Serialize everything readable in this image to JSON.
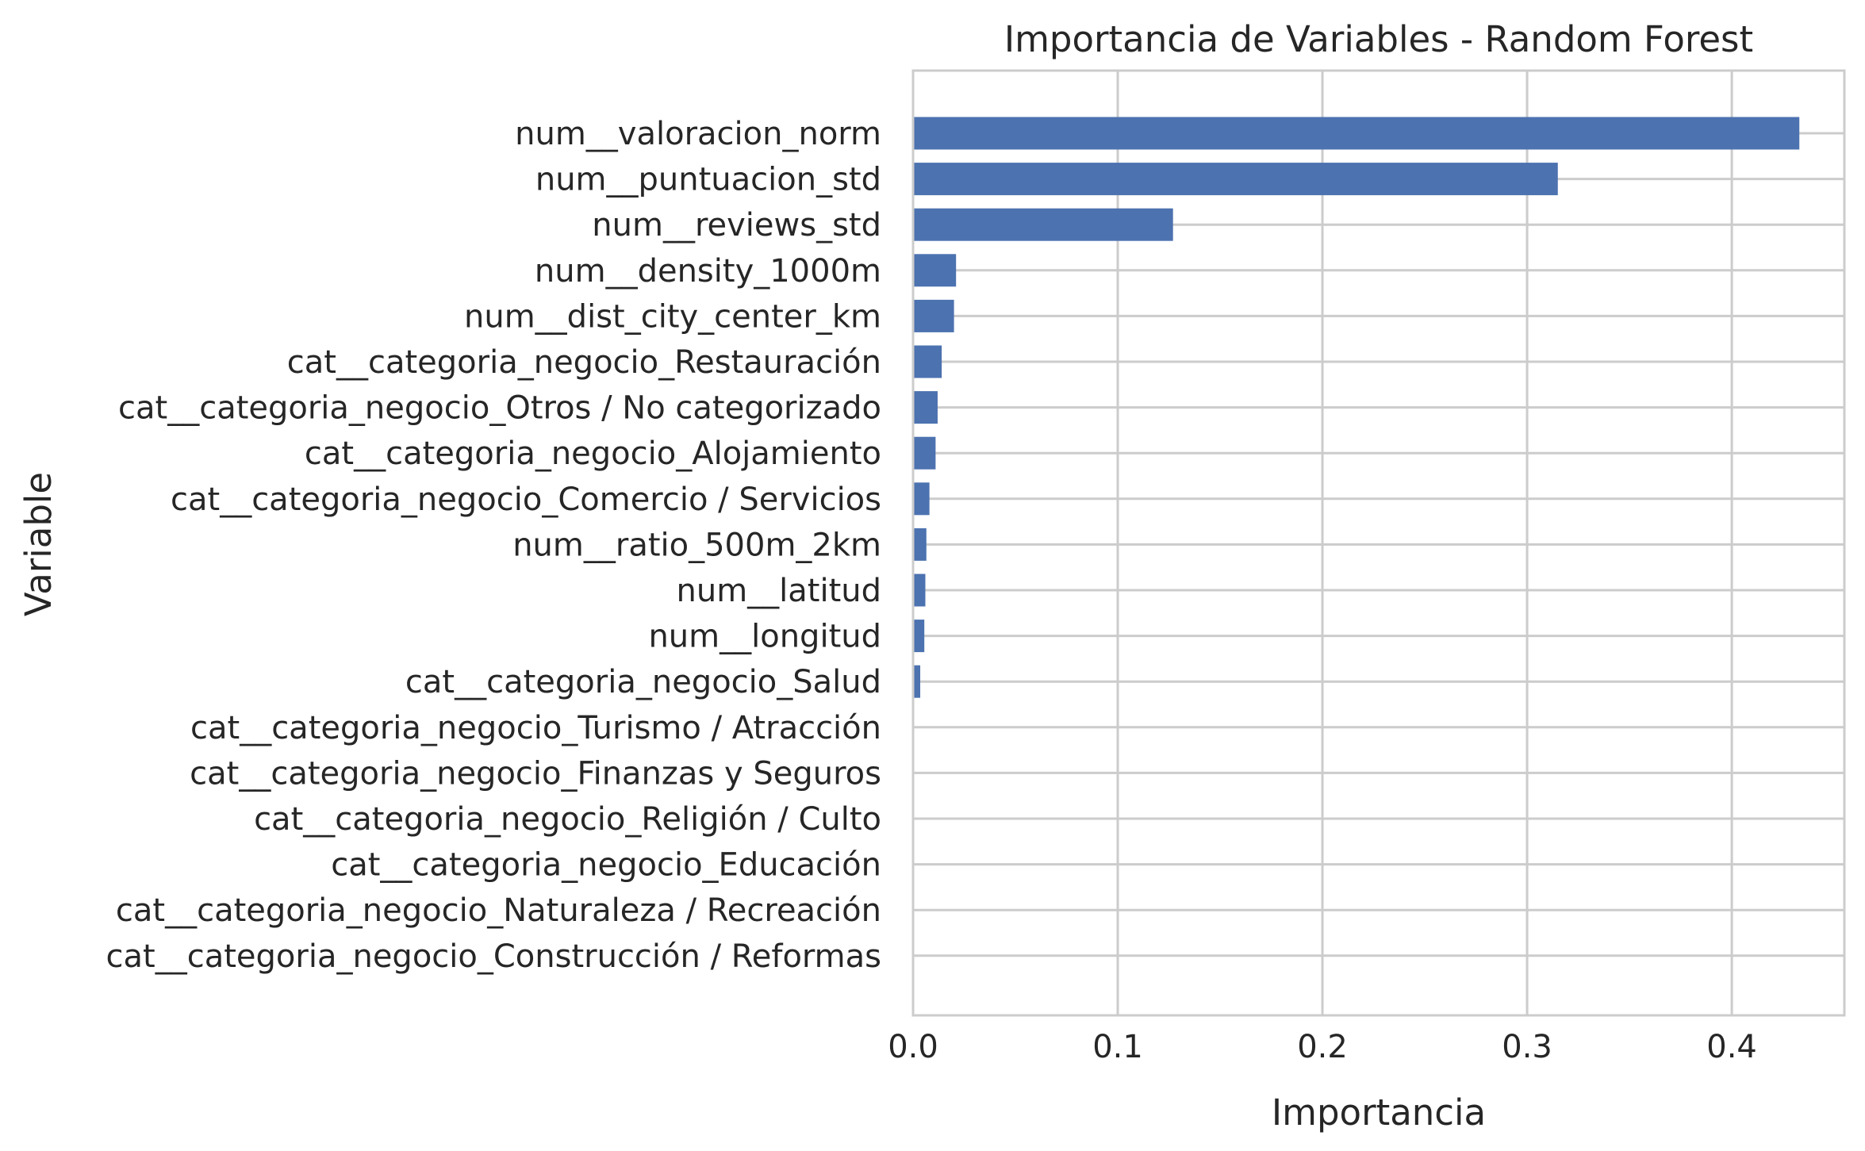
{
  "chart_data": {
    "type": "bar",
    "orientation": "horizontal",
    "title": "Importancia de Variables - Random Forest",
    "xlabel": "Importancia",
    "ylabel": "Variable",
    "xlim": [
      0,
      0.455
    ],
    "xticks": [
      0.0,
      0.1,
      0.2,
      0.3,
      0.4
    ],
    "xtick_labels": [
      "0.0",
      "0.1",
      "0.2",
      "0.3",
      "0.4"
    ],
    "grid": true,
    "bar_color": "#4c72b0",
    "categories": [
      "num__valoracion_norm",
      "num__puntuacion_std",
      "num__reviews_std",
      "num__density_1000m",
      "num__dist_city_center_km",
      "cat__categoria_negocio_Restauración",
      "cat__categoria_negocio_Otros / No categorizado",
      "cat__categoria_negocio_Alojamiento",
      "cat__categoria_negocio_Comercio / Servicios",
      "num__ratio_500m_2km",
      "num__latitud",
      "num__longitud",
      "cat__categoria_negocio_Salud",
      "cat__categoria_negocio_Turismo / Atracción",
      "cat__categoria_negocio_Finanzas y Seguros",
      "cat__categoria_negocio_Religión / Culto",
      "cat__categoria_negocio_Educación",
      "cat__categoria_negocio_Naturaleza / Recreación",
      "cat__categoria_negocio_Construcción / Reformas"
    ],
    "values": [
      0.433,
      0.315,
      0.127,
      0.021,
      0.02,
      0.014,
      0.012,
      0.011,
      0.008,
      0.0065,
      0.006,
      0.0055,
      0.0035,
      0.0003,
      0.0002,
      0.0001,
      0.0001,
      0.0001,
      0.0001
    ]
  }
}
